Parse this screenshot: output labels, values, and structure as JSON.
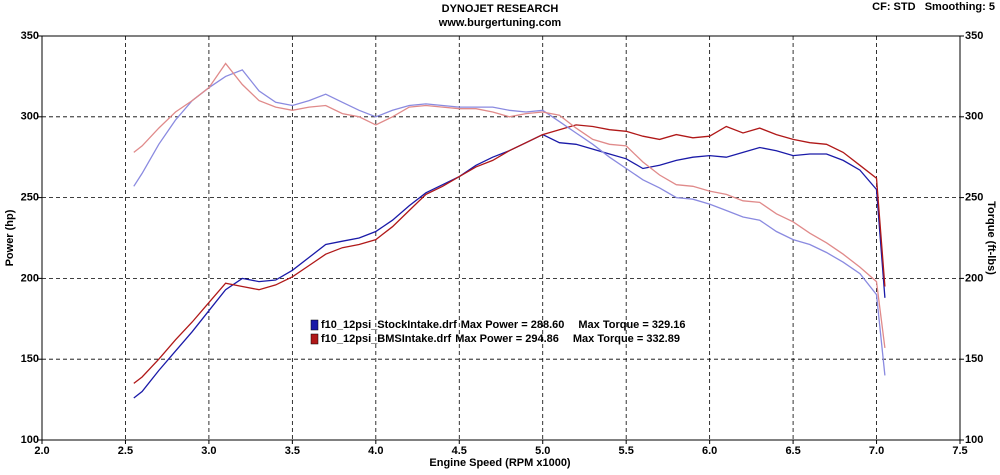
{
  "chart_data": {
    "type": "line",
    "title": "DYNOJET RESEARCH",
    "subtitle": "www.burgertuning.com",
    "corner_note": "CF: STD   Smoothing: 5",
    "x_label": "Engine Speed (RPM x1000)",
    "y_label": "Power (hp)",
    "y2_label": "Torque (ft-lbs)",
    "grid": true,
    "xlim": [
      2.0,
      7.5
    ],
    "xticks": [
      {
        "value": 2,
        "label": "2.0"
      },
      2.5,
      {
        "value": 3,
        "label": "3.0"
      },
      3.5,
      {
        "value": 4,
        "label": "4.0"
      },
      4.5,
      {
        "value": 5,
        "label": "5.0"
      },
      5.5,
      {
        "value": 6,
        "label": "6.0"
      },
      6.5,
      {
        "value": 7,
        "label": "7.0"
      },
      7.5
    ],
    "ylim": [
      100,
      350
    ],
    "yticks": [
      100,
      150,
      200,
      250,
      300,
      350
    ],
    "y2lim": [
      100,
      350
    ],
    "y2ticks": [
      100,
      150,
      200,
      250,
      300,
      350
    ],
    "x": [
      2.55,
      2.6,
      2.7,
      2.8,
      2.9,
      3.0,
      3.1,
      3.2,
      3.3,
      3.4,
      3.5,
      3.6,
      3.7,
      3.8,
      3.9,
      4.0,
      4.1,
      4.2,
      4.3,
      4.4,
      4.5,
      4.6,
      4.7,
      4.8,
      4.9,
      5.0,
      5.1,
      5.2,
      5.3,
      5.4,
      5.5,
      5.6,
      5.7,
      5.8,
      5.9,
      6.0,
      6.1,
      6.2,
      6.3,
      6.4,
      6.5,
      6.6,
      6.7,
      6.8,
      6.9,
      7.0,
      7.05
    ],
    "series": [
      {
        "name": "f10_12psi_StockIntake.drf",
        "max_power_label": "Max Power = 288.60",
        "max_torque_label": "Max Torque = 329.16",
        "color": "#1a1aa8",
        "values": [
          126,
          130,
          143,
          155,
          167,
          180,
          193,
          200,
          198,
          199,
          205,
          213,
          221,
          223,
          225,
          229,
          236,
          245,
          253,
          258,
          263,
          270,
          275,
          279,
          284,
          289,
          284,
          283,
          280,
          277,
          274,
          268,
          270,
          273,
          275,
          276,
          275,
          278,
          281,
          279,
          276,
          277,
          277,
          273,
          267,
          255,
          188
        ]
      },
      {
        "name": "f10_12psi_BMSIntake.drf",
        "max_power_label": "Max Power = 294.86",
        "max_torque_label": "Max Torque = 332.89",
        "color": "#b01818",
        "values": [
          135,
          139,
          150,
          162,
          173,
          185,
          197,
          195,
          193,
          196,
          201,
          208,
          215,
          219,
          221,
          224,
          232,
          242,
          252,
          257,
          263,
          269,
          273,
          279,
          284,
          289,
          292,
          295,
          294,
          292,
          291,
          288,
          286,
          289,
          287,
          288,
          294,
          290,
          293,
          289,
          286,
          284,
          283,
          278,
          270,
          262,
          195
        ]
      },
      {
        "axis": "y2",
        "color": "#8a8ae0",
        "values": [
          257,
          265,
          283,
          298,
          310,
          318,
          325,
          329,
          316,
          309,
          307,
          310,
          314,
          309,
          304,
          300,
          304,
          307,
          308,
          307,
          306,
          306,
          306,
          304,
          303,
          304,
          297,
          290,
          283,
          275,
          268,
          261,
          256,
          250,
          249,
          246,
          242,
          238,
          236,
          229,
          224,
          221,
          216,
          210,
          203,
          190,
          140
        ]
      },
      {
        "axis": "y2",
        "color": "#e08a8a",
        "values": [
          278,
          282,
          293,
          303,
          310,
          318,
          333,
          320,
          310,
          306,
          304,
          306,
          307,
          302,
          300,
          295,
          300,
          306,
          307,
          306,
          305,
          305,
          303,
          300,
          302,
          303,
          301,
          293,
          286,
          283,
          282,
          272,
          264,
          258,
          257,
          254,
          252,
          248,
          247,
          240,
          235,
          228,
          222,
          215,
          207,
          198,
          157
        ]
      }
    ]
  }
}
